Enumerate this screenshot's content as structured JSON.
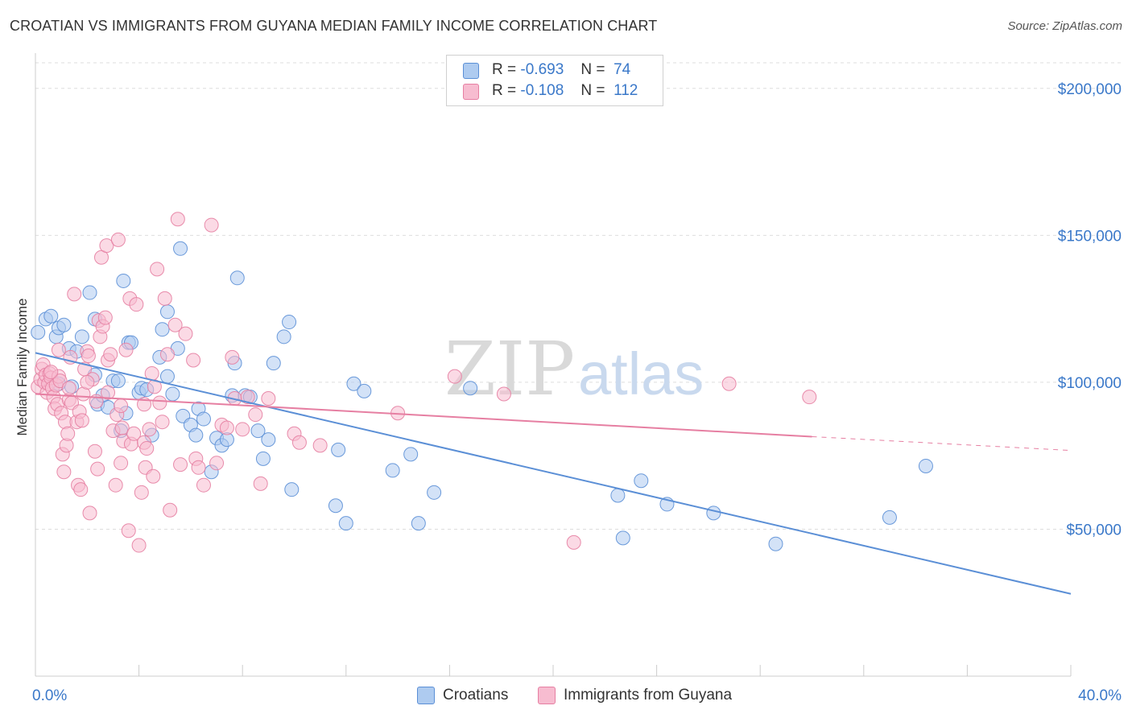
{
  "header": {
    "title": "CROATIAN VS IMMIGRANTS FROM GUYANA MEDIAN FAMILY INCOME CORRELATION CHART",
    "source": "Source: ZipAtlas.com"
  },
  "watermark": {
    "zip": "ZIP",
    "atlas": "atlas"
  },
  "legend": {
    "rows": [
      {
        "r_label": "R =",
        "r_value": "-0.693",
        "n_label": "N =",
        "n_value": "74",
        "fill": "#aecbf0",
        "stroke": "#5b8fd6"
      },
      {
        "r_label": "R =",
        "r_value": "-0.108",
        "n_label": "N =",
        "n_value": "112",
        "fill": "#f7bcd0",
        "stroke": "#e67fa2"
      }
    ]
  },
  "bottom_legend": [
    {
      "label": "Croatians",
      "fill": "#aecbf0",
      "stroke": "#5b8fd6"
    },
    {
      "label": "Immigrants from Guyana",
      "fill": "#f7bcd0",
      "stroke": "#e67fa2"
    }
  ],
  "chart_data": {
    "type": "scatter",
    "title": "CROATIAN VS IMMIGRANTS FROM GUYANA MEDIAN FAMILY INCOME CORRELATION CHART",
    "xlabel": "",
    "ylabel": "Median Family Income",
    "xlim": [
      0,
      40
    ],
    "ylim": [
      0,
      212000
    ],
    "x_tick_labels": [
      "0.0%",
      "40.0%"
    ],
    "y_ticks": [
      {
        "value": 50000,
        "label": "$50,000"
      },
      {
        "value": 100000,
        "label": "$100,000"
      },
      {
        "value": 150000,
        "label": "$150,000"
      },
      {
        "value": 200000,
        "label": "$200,000"
      }
    ],
    "grid": "horizontal dashed",
    "series": [
      {
        "name": "Croatians",
        "color": "#5b8fd6",
        "fill": "#aecbf0",
        "trend": {
          "x0": 0,
          "y0": 110000,
          "x1": 40,
          "y1": 28000
        },
        "points": [
          [
            0.1,
            117000
          ],
          [
            0.4,
            121500
          ],
          [
            0.6,
            122500
          ],
          [
            0.8,
            115500
          ],
          [
            0.9,
            118500
          ],
          [
            1.1,
            119500
          ],
          [
            1.3,
            111500
          ],
          [
            1.4,
            98500
          ],
          [
            1.6,
            110500
          ],
          [
            1.8,
            115500
          ],
          [
            2.1,
            130500
          ],
          [
            2.3,
            102500
          ],
          [
            2.3,
            121500
          ],
          [
            2.4,
            92500
          ],
          [
            2.6,
            95500
          ],
          [
            2.8,
            91500
          ],
          [
            3.0,
            100500
          ],
          [
            3.2,
            100500
          ],
          [
            3.3,
            83500
          ],
          [
            3.4,
            134500
          ],
          [
            3.5,
            89500
          ],
          [
            3.6,
            113500
          ],
          [
            3.7,
            113500
          ],
          [
            4.0,
            96500
          ],
          [
            4.1,
            98000
          ],
          [
            4.3,
            97500
          ],
          [
            4.5,
            82000
          ],
          [
            4.8,
            108500
          ],
          [
            4.9,
            118000
          ],
          [
            5.1,
            124000
          ],
          [
            5.1,
            102000
          ],
          [
            5.3,
            96000
          ],
          [
            5.5,
            111500
          ],
          [
            5.6,
            145500
          ],
          [
            5.7,
            88500
          ],
          [
            6.0,
            85500
          ],
          [
            6.2,
            82000
          ],
          [
            6.3,
            91000
          ],
          [
            6.5,
            87500
          ],
          [
            6.8,
            69500
          ],
          [
            7.0,
            81000
          ],
          [
            7.2,
            78500
          ],
          [
            7.4,
            80500
          ],
          [
            7.6,
            95500
          ],
          [
            7.7,
            106500
          ],
          [
            7.8,
            135500
          ],
          [
            8.1,
            95500
          ],
          [
            8.3,
            95000
          ],
          [
            8.6,
            83500
          ],
          [
            8.8,
            74000
          ],
          [
            9.0,
            80500
          ],
          [
            9.2,
            106500
          ],
          [
            9.6,
            115500
          ],
          [
            9.8,
            120500
          ],
          [
            9.9,
            63500
          ],
          [
            11.6,
            58000
          ],
          [
            11.7,
            77000
          ],
          [
            12.0,
            52000
          ],
          [
            12.3,
            99500
          ],
          [
            12.7,
            97000
          ],
          [
            13.8,
            70000
          ],
          [
            14.5,
            75500
          ],
          [
            14.8,
            52000
          ],
          [
            15.4,
            62500
          ],
          [
            16.8,
            98000
          ],
          [
            22.5,
            61500
          ],
          [
            22.7,
            47000
          ],
          [
            23.4,
            66500
          ],
          [
            24.4,
            58500
          ],
          [
            26.2,
            55500
          ],
          [
            28.6,
            45000
          ],
          [
            33.0,
            54000
          ],
          [
            34.4,
            71500
          ],
          [
            0.9,
            99500
          ]
        ]
      },
      {
        "name": "Immigrants from Guyana",
        "color": "#e67fa2",
        "fill": "#f7bcd0",
        "trend": {
          "x0": 0,
          "y0": 96000,
          "x1": 30,
          "y1": 81500
        },
        "trend_dashed": {
          "x0": 30,
          "y0": 81500,
          "x1": 40,
          "y1": 76800
        },
        "points": [
          [
            0.1,
            98500
          ],
          [
            0.2,
            101000
          ],
          [
            0.25,
            104500
          ],
          [
            0.3,
            106000
          ],
          [
            0.35,
            100000
          ],
          [
            0.4,
            102500
          ],
          [
            0.45,
            96500
          ],
          [
            0.5,
            99500
          ],
          [
            0.55,
            103000
          ],
          [
            0.6,
            101500
          ],
          [
            0.65,
            98000
          ],
          [
            0.7,
            95000
          ],
          [
            0.75,
            91000
          ],
          [
            0.8,
            99000
          ],
          [
            0.85,
            92500
          ],
          [
            0.9,
            102000
          ],
          [
            0.95,
            100500
          ],
          [
            1.0,
            89500
          ],
          [
            1.05,
            75500
          ],
          [
            1.1,
            69500
          ],
          [
            1.15,
            86500
          ],
          [
            1.2,
            78500
          ],
          [
            1.25,
            82500
          ],
          [
            1.3,
            94000
          ],
          [
            1.35,
            108500
          ],
          [
            1.4,
            93000
          ],
          [
            1.5,
            130000
          ],
          [
            1.6,
            86500
          ],
          [
            1.65,
            65000
          ],
          [
            1.7,
            90000
          ],
          [
            1.75,
            63500
          ],
          [
            1.8,
            87000
          ],
          [
            1.85,
            96000
          ],
          [
            1.9,
            104500
          ],
          [
            2.0,
            110500
          ],
          [
            2.05,
            109000
          ],
          [
            2.1,
            55500
          ],
          [
            2.2,
            101000
          ],
          [
            2.3,
            76500
          ],
          [
            2.35,
            93500
          ],
          [
            2.4,
            70500
          ],
          [
            2.45,
            121000
          ],
          [
            2.5,
            115500
          ],
          [
            2.55,
            142500
          ],
          [
            2.6,
            119000
          ],
          [
            2.7,
            122000
          ],
          [
            2.75,
            146500
          ],
          [
            2.8,
            107500
          ],
          [
            2.9,
            109500
          ],
          [
            3.0,
            83500
          ],
          [
            3.1,
            65000
          ],
          [
            3.15,
            89000
          ],
          [
            3.2,
            148500
          ],
          [
            3.3,
            72500
          ],
          [
            3.35,
            84500
          ],
          [
            3.4,
            80000
          ],
          [
            3.5,
            111000
          ],
          [
            3.6,
            49500
          ],
          [
            3.65,
            128500
          ],
          [
            3.7,
            79000
          ],
          [
            3.8,
            82500
          ],
          [
            3.9,
            126500
          ],
          [
            4.0,
            44500
          ],
          [
            4.1,
            62500
          ],
          [
            4.2,
            79500
          ],
          [
            4.25,
            71000
          ],
          [
            4.3,
            77500
          ],
          [
            4.4,
            84000
          ],
          [
            4.5,
            103000
          ],
          [
            4.55,
            68000
          ],
          [
            4.6,
            98500
          ],
          [
            4.7,
            138500
          ],
          [
            4.8,
            93000
          ],
          [
            4.9,
            86500
          ],
          [
            5.0,
            128500
          ],
          [
            5.1,
            109500
          ],
          [
            5.2,
            56500
          ],
          [
            5.4,
            119500
          ],
          [
            5.5,
            155500
          ],
          [
            5.6,
            72000
          ],
          [
            5.8,
            116500
          ],
          [
            6.1,
            107500
          ],
          [
            6.2,
            74000
          ],
          [
            6.3,
            71000
          ],
          [
            6.5,
            65000
          ],
          [
            6.8,
            153500
          ],
          [
            7.0,
            72500
          ],
          [
            7.2,
            85500
          ],
          [
            7.4,
            84500
          ],
          [
            7.6,
            108500
          ],
          [
            7.7,
            94500
          ],
          [
            8.0,
            84000
          ],
          [
            8.2,
            95000
          ],
          [
            8.5,
            89000
          ],
          [
            8.7,
            65500
          ],
          [
            9.0,
            94500
          ],
          [
            10.0,
            82500
          ],
          [
            10.2,
            79500
          ],
          [
            11.0,
            78500
          ],
          [
            14.0,
            89500
          ],
          [
            16.2,
            102000
          ],
          [
            18.1,
            96000
          ],
          [
            20.8,
            45500
          ],
          [
            26.8,
            99500
          ],
          [
            29.9,
            95000
          ],
          [
            0.6,
            103500
          ],
          [
            0.9,
            111000
          ],
          [
            1.3,
            98000
          ],
          [
            2.0,
            100000
          ],
          [
            2.8,
            96500
          ],
          [
            3.3,
            92000
          ],
          [
            4.2,
            92500
          ]
        ]
      }
    ]
  }
}
